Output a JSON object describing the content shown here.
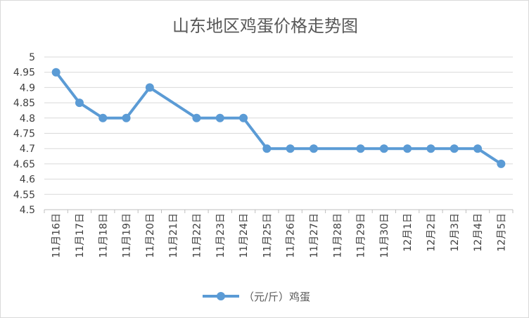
{
  "chart_data": {
    "type": "line",
    "title": "山东地区鸡蛋价格走势图",
    "xlabel": "",
    "ylabel": "",
    "categories": [
      "11月16日",
      "11月17日",
      "11月18日",
      "11月19日",
      "11月20日",
      "11月21日",
      "11月22日",
      "11月23日",
      "11月24日",
      "11月25日",
      "11月26日",
      "11月27日",
      "11月28日",
      "11月29日",
      "11月30日",
      "12月1日",
      "12月2日",
      "12月3日",
      "12月4日",
      "12月5日"
    ],
    "series": [
      {
        "name": "（元/斤）鸡蛋",
        "color": "#5b9bd5",
        "values": [
          4.95,
          4.85,
          4.8,
          4.8,
          4.9,
          null,
          4.8,
          4.8,
          4.8,
          4.7,
          4.7,
          4.7,
          null,
          4.7,
          4.7,
          4.7,
          4.7,
          4.7,
          4.7,
          4.65
        ]
      }
    ],
    "ylim": [
      4.5,
      5
    ],
    "yticks": [
      "5",
      "4.95",
      "4.9",
      "4.85",
      "4.8",
      "4.75",
      "4.7",
      "4.65",
      "4.6",
      "4.55",
      "4.5"
    ],
    "grid": true,
    "legend": "bottom",
    "colors": {
      "series": "#5b9bd5",
      "grid": "#d9d9d9",
      "text": "#404040"
    }
  }
}
